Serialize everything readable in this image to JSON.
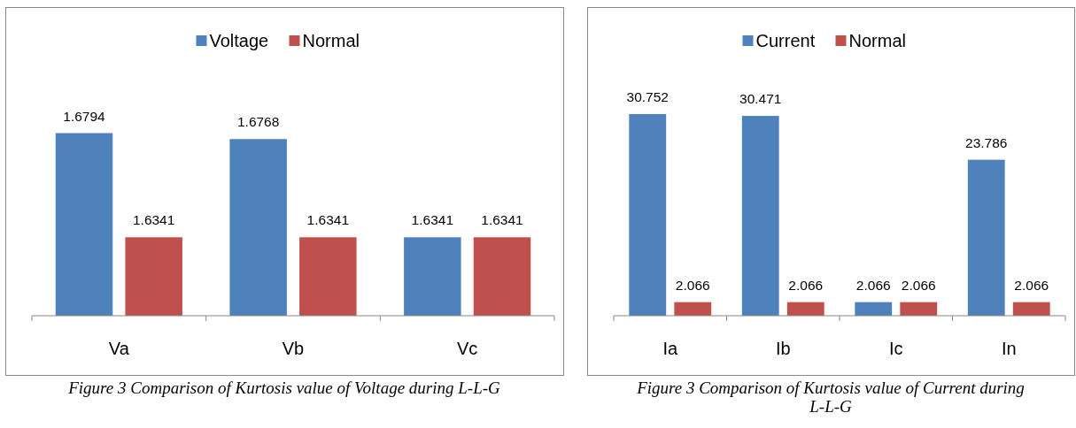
{
  "chart_data": [
    {
      "type": "bar",
      "categories": [
        "Va",
        "Vb",
        "Vc"
      ],
      "series": [
        {
          "name": "Voltage",
          "color": "#4f81bd",
          "values": [
            1.6794,
            1.6768,
            1.6341
          ]
        },
        {
          "name": "Normal",
          "color": "#c0504d",
          "values": [
            1.6341,
            1.6341,
            1.6341
          ]
        }
      ],
      "ylim": [
        1.6,
        1.734
      ],
      "data_labels": true,
      "legend": "top",
      "tick_labels": "x",
      "annotations": [
        "Figure 3 Comparison of Kurtosis value of Voltage during L-L-G"
      ]
    },
    {
      "type": "bar",
      "categories": [
        "Ia",
        "Ib",
        "Ic",
        "In"
      ],
      "series": [
        {
          "name": "Current",
          "color": "#4f81bd",
          "values": [
            30.752,
            30.471,
            2.066,
            23.786
          ]
        },
        {
          "name": "Normal",
          "color": "#c0504d",
          "values": [
            2.066,
            2.066,
            2.066,
            2.066
          ]
        }
      ],
      "ylim": [
        0,
        47
      ],
      "data_labels": true,
      "legend": "top",
      "tick_labels": "x",
      "annotations": [
        "Figure 3 Comparison of  Kurtosis  value of Current during L-L-G"
      ]
    }
  ]
}
